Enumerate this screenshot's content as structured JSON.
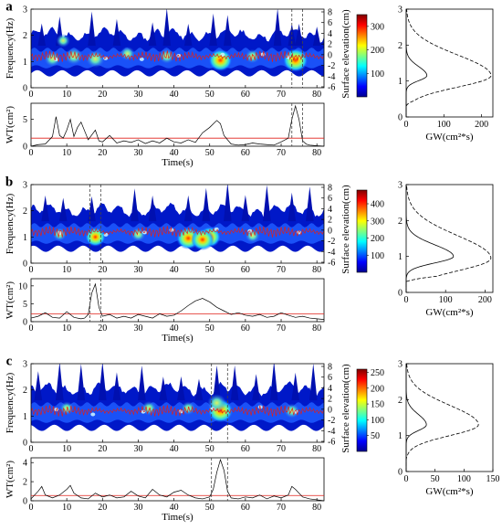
{
  "chart_data": [
    {
      "panel": "a",
      "type": "heatmap",
      "ylabel": "Frequency(Hz)",
      "right_ylabel": "Surface elevation(cm)",
      "xlim": [
        0,
        82
      ],
      "ylim": [
        0,
        3
      ],
      "xticks": [
        "0",
        "10",
        "20",
        "30",
        "40",
        "50",
        "60",
        "70",
        "80"
      ],
      "yticks": [
        "0",
        "1",
        "2",
        "3"
      ],
      "right_yticks": [
        "-6",
        "-4",
        "-2",
        "0",
        "2",
        "4",
        "6",
        "8"
      ],
      "colorbar": {
        "min": 0,
        "max": 350,
        "ticks": [
          "100",
          "200",
          "300"
        ]
      },
      "hotspots": [
        {
          "t": 6,
          "f": 1.1,
          "v": 0.45
        },
        {
          "t": 12,
          "f": 1.2,
          "v": 0.55
        },
        {
          "t": 18,
          "f": 1.1,
          "v": 0.6
        },
        {
          "t": 27,
          "f": 1.3,
          "v": 0.35
        },
        {
          "t": 38,
          "f": 1.2,
          "v": 0.4
        },
        {
          "t": 53,
          "f": 1.05,
          "v": 0.9
        },
        {
          "t": 74,
          "f": 1.05,
          "v": 1.0
        },
        {
          "t": 9,
          "f": 1.8,
          "v": 0.3
        },
        {
          "t": 62,
          "f": 1.2,
          "v": 0.35
        }
      ],
      "spikes": [
        3,
        8,
        17,
        24,
        34,
        38,
        44,
        51,
        55,
        69,
        73,
        75,
        80
      ],
      "dashed_t": [
        73,
        76
      ],
      "wt": {
        "ylabel": "WT(cm²)",
        "xlabel": "Time(s)",
        "ylim": [
          0,
          8
        ],
        "yticks": [
          "0",
          "5"
        ],
        "threshold": 1.5,
        "t": [
          0,
          2,
          4,
          6,
          7,
          8,
          9,
          10,
          11,
          12,
          13,
          14,
          16,
          18,
          19,
          20,
          22,
          24,
          26,
          28,
          30,
          32,
          34,
          36,
          38,
          40,
          42,
          44,
          46,
          48,
          50,
          52,
          53,
          54,
          56,
          58,
          60,
          62,
          64,
          66,
          68,
          70,
          72,
          73,
          74,
          75,
          76,
          77,
          78,
          80,
          82
        ],
        "v": [
          0,
          0.3,
          0.4,
          1.8,
          5.5,
          2.0,
          1.5,
          3.0,
          5.0,
          1.8,
          3.5,
          4.5,
          1.2,
          3.0,
          1.0,
          0.8,
          2.0,
          0.6,
          1.0,
          0.7,
          1.2,
          0.5,
          1.0,
          0.6,
          1.5,
          0.8,
          0.6,
          1.2,
          0.7,
          2.5,
          3.5,
          4.8,
          4.2,
          2.0,
          0.4,
          0.2,
          0.3,
          0.6,
          0.4,
          0.3,
          0.2,
          0.8,
          1.5,
          5.0,
          7.5,
          5.0,
          1.0,
          0.4,
          0.2,
          0.1,
          0
        ]
      },
      "gw": {
        "xlabel": "GW(cm²*s)",
        "xlim": [
          0,
          230
        ],
        "xticks": [
          "0",
          "100",
          "200"
        ],
        "yticks": [
          "0",
          "1",
          "2",
          "3"
        ],
        "ylim": [
          0,
          3
        ],
        "peak_solid": {
          "f": 1.15,
          "v": 55,
          "w": 0.14
        },
        "peak_dashed": {
          "f": 1.15,
          "v": 225,
          "w": 0.32
        }
      }
    },
    {
      "panel": "b",
      "type": "heatmap",
      "ylabel": "Frequency(Hz)",
      "right_ylabel": "Surface elevation(cm)",
      "xlim": [
        0,
        82
      ],
      "ylim": [
        0,
        3
      ],
      "xticks": [
        "0",
        "10",
        "20",
        "30",
        "40",
        "50",
        "60",
        "70",
        "80"
      ],
      "yticks": [
        "0",
        "1",
        "2",
        "3"
      ],
      "right_yticks": [
        "-6",
        "-4",
        "-2",
        "0",
        "2",
        "4",
        "6",
        "8"
      ],
      "colorbar": {
        "min": 0,
        "max": 480,
        "ticks": [
          "100",
          "200",
          "300",
          "400"
        ]
      },
      "hotspots": [
        {
          "t": 18,
          "f": 1.0,
          "v": 0.7
        },
        {
          "t": 44,
          "f": 0.95,
          "v": 0.9
        },
        {
          "t": 50,
          "f": 1.0,
          "v": 0.8
        },
        {
          "t": 48,
          "f": 0.9,
          "v": 0.85
        },
        {
          "t": 30,
          "f": 1.1,
          "v": 0.35
        },
        {
          "t": 62,
          "f": 1.05,
          "v": 0.35
        },
        {
          "t": 8,
          "f": 1.1,
          "v": 0.3
        }
      ],
      "spikes": [
        4,
        9,
        17,
        29,
        34,
        44,
        49,
        55,
        60,
        66,
        73,
        78
      ],
      "dashed_t": [
        16.5,
        19.5
      ],
      "wt": {
        "ylabel": "WT(cm²)",
        "xlabel": "Time(s)",
        "ylim": [
          0,
          12
        ],
        "yticks": [
          "0",
          "5",
          "10"
        ],
        "threshold": 2.2,
        "t": [
          0,
          2,
          4,
          6,
          8,
          10,
          12,
          14,
          15,
          16,
          17,
          18,
          19,
          20,
          22,
          24,
          26,
          28,
          30,
          32,
          34,
          36,
          38,
          40,
          42,
          44,
          46,
          48,
          50,
          52,
          54,
          56,
          58,
          60,
          62,
          64,
          66,
          68,
          70,
          72,
          74,
          76,
          78,
          80,
          82
        ],
        "v": [
          1.0,
          1.5,
          2.5,
          1.2,
          1.0,
          2.8,
          1.2,
          0.8,
          1.0,
          2.0,
          8.0,
          10.5,
          4.0,
          1.5,
          2.0,
          1.0,
          1.5,
          1.0,
          2.0,
          1.5,
          1.0,
          2.2,
          1.5,
          1.8,
          3.0,
          4.5,
          5.8,
          6.5,
          5.5,
          4.0,
          3.0,
          2.0,
          2.5,
          1.8,
          1.5,
          2.0,
          1.2,
          1.5,
          2.5,
          1.8,
          1.2,
          1.5,
          1.0,
          0.8,
          0.6
        ]
      },
      "gw": {
        "xlabel": "GW(cm²*s)",
        "xlim": [
          0,
          220
        ],
        "xticks": [
          "0",
          "100",
          "200"
        ],
        "yticks": [
          "0",
          "1",
          "2",
          "3"
        ],
        "ylim": [
          0,
          3
        ],
        "peak_solid": {
          "f": 1.0,
          "v": 120,
          "w": 0.18
        },
        "peak_dashed": {
          "f": 0.95,
          "v": 215,
          "w": 0.35
        }
      }
    },
    {
      "panel": "c",
      "type": "heatmap",
      "ylabel": "Frequency(Hz)",
      "right_ylabel": "Surface elevation(cm)",
      "xlim": [
        0,
        82
      ],
      "ylim": [
        0,
        3
      ],
      "xticks": [
        "0",
        "10",
        "20",
        "30",
        "40",
        "50",
        "60",
        "70",
        "80"
      ],
      "yticks": [
        "0",
        "1",
        "2",
        "3"
      ],
      "right_yticks": [
        "-6",
        "-4",
        "-2",
        "0",
        "2",
        "4",
        "6",
        "8"
      ],
      "colorbar": {
        "min": 0,
        "max": 260,
        "ticks": [
          "50",
          "100",
          "150",
          "200",
          "250"
        ]
      },
      "hotspots": [
        {
          "t": 53,
          "f": 1.2,
          "v": 1.0
        },
        {
          "t": 52,
          "f": 1.5,
          "v": 0.6
        },
        {
          "t": 10,
          "f": 1.3,
          "v": 0.3
        },
        {
          "t": 33,
          "f": 1.3,
          "v": 0.35
        },
        {
          "t": 73,
          "f": 1.2,
          "v": 0.4
        },
        {
          "t": 44,
          "f": 1.3,
          "v": 0.3
        }
      ],
      "spikes": [
        2,
        8,
        14,
        20,
        24,
        31,
        37,
        42,
        47,
        52,
        57,
        63,
        68,
        74,
        79
      ],
      "dashed_t": [
        50.5,
        55
      ],
      "wt": {
        "ylabel": "WT(cm²)",
        "xlabel": "Time(s)",
        "ylim": [
          0,
          4.5
        ],
        "yticks": [
          "0",
          "2",
          "4"
        ],
        "threshold": 0.55,
        "t": [
          0,
          2,
          3,
          4,
          6,
          8,
          10,
          11,
          12,
          14,
          16,
          18,
          20,
          22,
          24,
          26,
          28,
          30,
          32,
          34,
          36,
          38,
          40,
          42,
          44,
          46,
          48,
          50,
          51,
          52,
          53,
          54,
          55,
          56,
          58,
          60,
          62,
          64,
          66,
          68,
          70,
          72,
          73,
          74,
          76,
          78,
          80,
          82
        ],
        "v": [
          0.2,
          1.0,
          1.5,
          0.6,
          0.3,
          0.6,
          1.2,
          1.6,
          0.8,
          0.3,
          0.2,
          0.8,
          0.4,
          0.6,
          0.3,
          0.4,
          1.0,
          0.5,
          0.3,
          1.2,
          0.6,
          0.4,
          0.9,
          1.1,
          0.6,
          0.3,
          0.2,
          0.4,
          1.2,
          3.0,
          4.3,
          3.2,
          1.0,
          0.3,
          0.2,
          0.4,
          0.3,
          0.6,
          0.2,
          0.5,
          0.3,
          0.6,
          1.5,
          1.2,
          0.4,
          0.2,
          0.1,
          0
        ]
      },
      "gw": {
        "xlabel": "GW(cm²*s)",
        "xlim": [
          0,
          150
        ],
        "xticks": [
          "0",
          "50",
          "100",
          "150"
        ],
        "yticks": [
          "0",
          "1",
          "2",
          "3"
        ],
        "ylim": [
          0,
          3
        ],
        "peak_solid": {
          "f": 1.3,
          "v": 35,
          "w": 0.16
        },
        "peak_dashed": {
          "f": 1.3,
          "v": 125,
          "w": 0.3
        }
      }
    }
  ]
}
